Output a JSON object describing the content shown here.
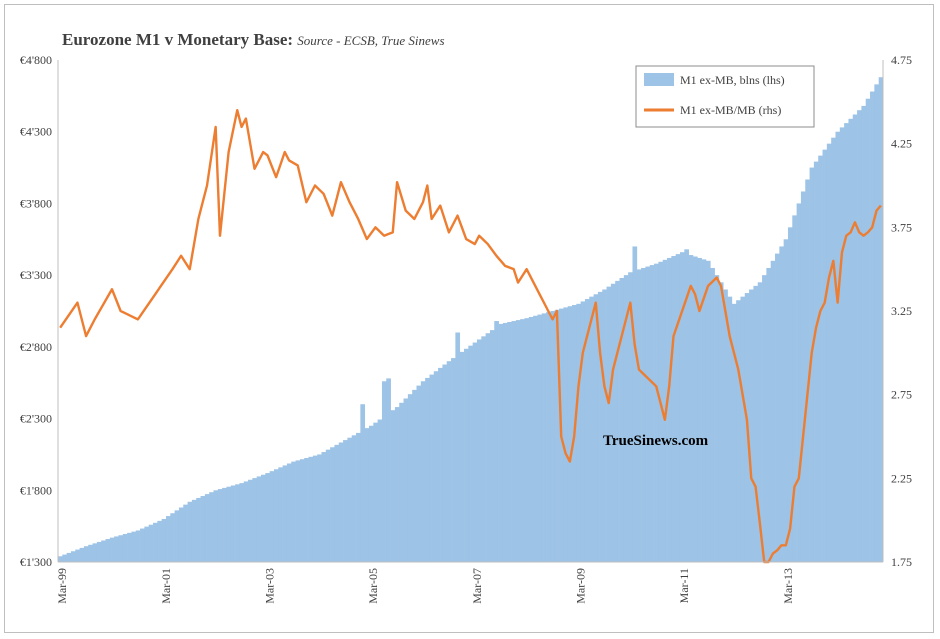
{
  "title": "Eurozone M1 v Monetary Base:",
  "subtitle": "Source - ECSB, True Sinews",
  "watermark": "TrueSinews.com",
  "colors": {
    "bars": "#9dc3e6",
    "line": "#ed7d31",
    "axis": "#bfbfbf",
    "text": "#404040"
  },
  "chart_data": {
    "type": "bar",
    "title": "Eurozone M1 v Monetary Base:",
    "subtitle": "Source - ECSB, True Sinews",
    "legend": [
      {
        "name": "M1 ex-MB, blns (lhs)",
        "kind": "bar"
      },
      {
        "name": "M1 ex-MB/MB (rhs)",
        "kind": "line"
      }
    ],
    "legend_position": "top-right",
    "grid": false,
    "period_count": 191,
    "x_tick_labels": [
      "Mar-99",
      "Mar-01",
      "Mar-03",
      "Mar-05",
      "Mar-07",
      "Mar-09",
      "Mar-11",
      "Mar-13"
    ],
    "x_tick_period_index": [
      0,
      24,
      48,
      72,
      96,
      120,
      144,
      168
    ],
    "y_left": {
      "ylim": [
        1300,
        4800
      ],
      "ticks": [
        "€1'300",
        "€1'800",
        "€2'300",
        "€2'800",
        "€3'300",
        "€3'800",
        "€4'300",
        "€4'800"
      ],
      "tick_values": [
        1300,
        1800,
        2300,
        2800,
        3300,
        3800,
        4300,
        4800
      ]
    },
    "y_right": {
      "ylim": [
        1.75,
        4.75
      ],
      "ticks": [
        "1.75",
        "2.25",
        "2.75",
        "3.25",
        "3.75",
        "4.25",
        "4.75"
      ],
      "tick_values": [
        1.75,
        2.25,
        2.75,
        3.25,
        3.75,
        4.25,
        4.75
      ]
    },
    "series": [
      {
        "name": "M1 ex-MB, blns (lhs)",
        "type": "bar",
        "axis": "left",
        "anchors": [
          [
            0,
            1340
          ],
          [
            6,
            1410
          ],
          [
            12,
            1470
          ],
          [
            18,
            1520
          ],
          [
            24,
            1600
          ],
          [
            30,
            1720
          ],
          [
            36,
            1800
          ],
          [
            42,
            1850
          ],
          [
            48,
            1920
          ],
          [
            54,
            2000
          ],
          [
            60,
            2050
          ],
          [
            66,
            2150
          ],
          [
            72,
            2250
          ],
          [
            78,
            2380
          ],
          [
            84,
            2560
          ],
          [
            90,
            2700
          ],
          [
            96,
            2830
          ],
          [
            102,
            2960
          ],
          [
            108,
            3000
          ],
          [
            114,
            3050
          ],
          [
            120,
            3100
          ],
          [
            126,
            3200
          ],
          [
            132,
            3320
          ],
          [
            138,
            3380
          ],
          [
            144,
            3460
          ],
          [
            150,
            3400
          ],
          [
            156,
            3100
          ],
          [
            162,
            3250
          ],
          [
            168,
            3550
          ],
          [
            174,
            4050
          ],
          [
            180,
            4300
          ],
          [
            186,
            4480
          ],
          [
            190,
            4680
          ]
        ],
        "spikes": [
          [
            70,
            2400
          ],
          [
            75,
            2560
          ],
          [
            76,
            2580
          ],
          [
            92,
            2900
          ],
          [
            101,
            2980
          ],
          [
            133,
            3500
          ],
          [
            145,
            3480
          ]
        ]
      },
      {
        "name": "M1 ex-MB/MB (rhs)",
        "type": "line",
        "axis": "right",
        "anchors": [
          [
            0,
            3.15
          ],
          [
            4,
            3.3
          ],
          [
            6,
            3.1
          ],
          [
            8,
            3.2
          ],
          [
            12,
            3.38
          ],
          [
            14,
            3.25
          ],
          [
            18,
            3.2
          ],
          [
            22,
            3.35
          ],
          [
            26,
            3.5
          ],
          [
            28,
            3.58
          ],
          [
            30,
            3.5
          ],
          [
            32,
            3.8
          ],
          [
            34,
            4.0
          ],
          [
            36,
            4.35
          ],
          [
            37,
            3.7
          ],
          [
            39,
            4.2
          ],
          [
            41,
            4.45
          ],
          [
            42,
            4.35
          ],
          [
            43,
            4.4
          ],
          [
            45,
            4.1
          ],
          [
            47,
            4.2
          ],
          [
            48,
            4.18
          ],
          [
            50,
            4.05
          ],
          [
            52,
            4.2
          ],
          [
            53,
            4.15
          ],
          [
            55,
            4.12
          ],
          [
            57,
            3.9
          ],
          [
            59,
            4.0
          ],
          [
            61,
            3.95
          ],
          [
            63,
            3.82
          ],
          [
            65,
            4.02
          ],
          [
            67,
            3.9
          ],
          [
            69,
            3.8
          ],
          [
            71,
            3.68
          ],
          [
            73,
            3.75
          ],
          [
            75,
            3.7
          ],
          [
            77,
            3.72
          ],
          [
            78,
            4.02
          ],
          [
            80,
            3.85
          ],
          [
            82,
            3.8
          ],
          [
            84,
            3.9
          ],
          [
            85,
            4.0
          ],
          [
            86,
            3.8
          ],
          [
            88,
            3.88
          ],
          [
            90,
            3.72
          ],
          [
            92,
            3.82
          ],
          [
            94,
            3.68
          ],
          [
            96,
            3.65
          ],
          [
            97,
            3.7
          ],
          [
            99,
            3.65
          ],
          [
            101,
            3.58
          ],
          [
            103,
            3.52
          ],
          [
            105,
            3.5
          ],
          [
            106,
            3.42
          ],
          [
            108,
            3.5
          ],
          [
            110,
            3.4
          ],
          [
            112,
            3.3
          ],
          [
            113,
            3.25
          ],
          [
            114,
            3.2
          ],
          [
            115,
            3.25
          ],
          [
            116,
            2.5
          ],
          [
            117,
            2.4
          ],
          [
            118,
            2.35
          ],
          [
            119,
            2.5
          ],
          [
            120,
            2.8
          ],
          [
            121,
            3.0
          ],
          [
            122,
            3.1
          ],
          [
            123,
            3.2
          ],
          [
            124,
            3.3
          ],
          [
            125,
            3.0
          ],
          [
            126,
            2.8
          ],
          [
            127,
            2.7
          ],
          [
            128,
            2.9
          ],
          [
            130,
            3.1
          ],
          [
            132,
            3.3
          ],
          [
            133,
            3.05
          ],
          [
            134,
            2.9
          ],
          [
            136,
            2.85
          ],
          [
            138,
            2.8
          ],
          [
            139,
            2.7
          ],
          [
            140,
            2.6
          ],
          [
            141,
            2.8
          ],
          [
            142,
            3.1
          ],
          [
            144,
            3.25
          ],
          [
            146,
            3.4
          ],
          [
            147,
            3.35
          ],
          [
            148,
            3.25
          ],
          [
            150,
            3.4
          ],
          [
            152,
            3.45
          ],
          [
            153,
            3.4
          ],
          [
            155,
            3.1
          ],
          [
            157,
            2.9
          ],
          [
            158,
            2.75
          ],
          [
            159,
            2.6
          ],
          [
            160,
            2.25
          ],
          [
            161,
            2.2
          ],
          [
            162,
            1.98
          ],
          [
            163,
            1.75
          ],
          [
            164,
            1.75
          ],
          [
            165,
            1.8
          ],
          [
            166,
            1.82
          ],
          [
            167,
            1.85
          ],
          [
            168,
            1.85
          ],
          [
            169,
            1.95
          ],
          [
            170,
            2.2
          ],
          [
            171,
            2.25
          ],
          [
            172,
            2.5
          ],
          [
            173,
            2.75
          ],
          [
            174,
            3.0
          ],
          [
            175,
            3.15
          ],
          [
            176,
            3.25
          ],
          [
            177,
            3.3
          ],
          [
            178,
            3.45
          ],
          [
            179,
            3.55
          ],
          [
            180,
            3.3
          ],
          [
            181,
            3.6
          ],
          [
            182,
            3.7
          ],
          [
            183,
            3.72
          ],
          [
            184,
            3.78
          ],
          [
            185,
            3.72
          ],
          [
            186,
            3.7
          ],
          [
            187,
            3.72
          ],
          [
            188,
            3.75
          ],
          [
            189,
            3.85
          ],
          [
            190,
            3.88
          ]
        ]
      }
    ]
  }
}
